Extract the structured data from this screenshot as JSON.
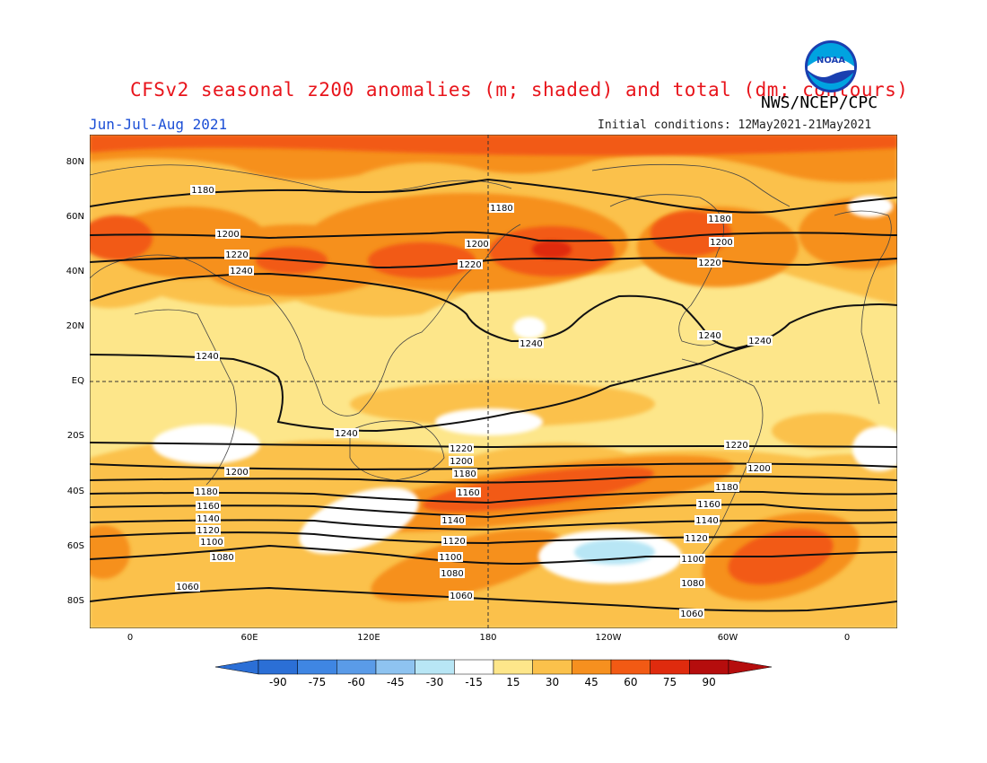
{
  "title": "CFSv2 seasonal z200 anomalies (m; shaded) and total (dm; contours)",
  "agency": "NWS/NCEP/CPC",
  "logo_text": "NOAA",
  "season": "Jun-Jul-Aug 2021",
  "initial_conditions": "Initial conditions: 12May2021-21May2021",
  "lat_labels": [
    "80N",
    "60N",
    "40N",
    "20N",
    "EQ",
    "20S",
    "40S",
    "60S",
    "80S"
  ],
  "lon_labels": [
    "0",
    "60E",
    "120E",
    "180",
    "120W",
    "60W",
    "0"
  ],
  "colorbar": {
    "labels": [
      "-90",
      "-75",
      "-60",
      "-45",
      "-30",
      "-15",
      "15",
      "30",
      "45",
      "60",
      "75",
      "90"
    ],
    "colors": [
      "#2b6fd6",
      "#3f86e3",
      "#5a9be8",
      "#8ec3f0",
      "#b8e6f5",
      "#ffffff",
      "#fde68a",
      "#fbc14b",
      "#f6901f",
      "#f25a14",
      "#df2b0e",
      "#b50d0d"
    ]
  },
  "contour_labels": [
    "1180",
    "1200",
    "1220",
    "1240",
    "1160",
    "1140",
    "1120",
    "1100",
    "1080",
    "1060"
  ],
  "colors": {
    "title": "#e8141b",
    "season": "#1c4fd6"
  }
}
